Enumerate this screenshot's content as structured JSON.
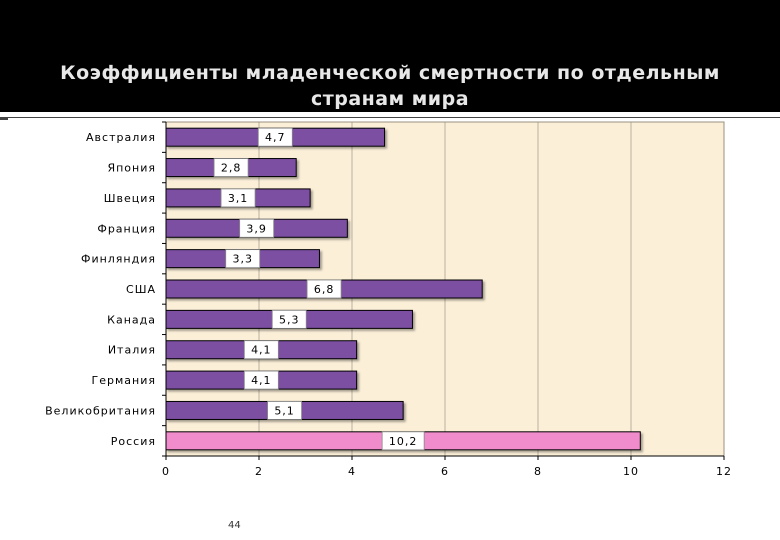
{
  "slide": {
    "title_line1": "Коэффициенты младенческой смертности по отдельным",
    "title_line2": "странам мира",
    "page_number": "44"
  },
  "colors": {
    "plot_background": "#fbefd8",
    "bar_default": "#7b4fa3",
    "bar_highlight": "#f08ccc",
    "grid": "#b8b0a0"
  },
  "chart_data": {
    "type": "bar",
    "orientation": "horizontal",
    "title": "Коэффициенты младенческой смертности по отдельным странам мира",
    "categories": [
      "Австралия",
      "Япония",
      "Швеция",
      "Франция",
      "Финляндия",
      "США",
      "Канада",
      "Италия",
      "Германия",
      "Великобритания",
      "Россия"
    ],
    "values": [
      4.7,
      2.8,
      3.1,
      3.9,
      3.3,
      6.8,
      5.3,
      4.1,
      4.1,
      5.1,
      10.2
    ],
    "value_labels": [
      "4,7",
      "2,8",
      "3,1",
      "3,9",
      "3,3",
      "6,8",
      "5,3",
      "4,1",
      "4,1",
      "5,1",
      "10,2"
    ],
    "highlight": [
      "Россия"
    ],
    "xlim": [
      0,
      12
    ],
    "x_ticks": [
      0,
      2,
      4,
      6,
      8,
      10,
      12
    ],
    "xlabel": "",
    "ylabel": "",
    "grid": true,
    "legend": "none"
  }
}
